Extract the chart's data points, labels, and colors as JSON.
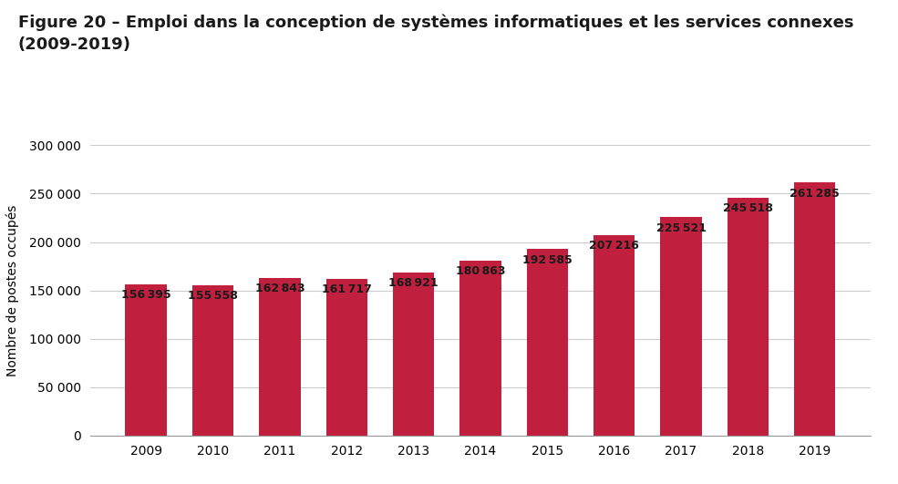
{
  "title_line1": "Figure 20 – Emploi dans la conception de systèmes informatiques et les services connexes",
  "title_line2": "(2009-2019)",
  "ylabel": "Nombre de postes occupés",
  "years": [
    "2009",
    "2010",
    "2011",
    "2012",
    "2013",
    "2014",
    "2015",
    "2016",
    "2017",
    "2018",
    "2019"
  ],
  "values": [
    156395,
    155558,
    162843,
    161717,
    168921,
    180863,
    192585,
    207216,
    225521,
    245518,
    261285
  ],
  "bar_color": "#c0203e",
  "label_color": "#1a1a1a",
  "background_color": "#ffffff",
  "ylim": [
    0,
    300000
  ],
  "yticks": [
    0,
    50000,
    100000,
    150000,
    200000,
    250000,
    300000
  ],
  "ytick_labels": [
    "0",
    "50 000",
    "100 000",
    "150 000",
    "200 000",
    "250 000",
    "300 000"
  ],
  "bar_label_fontsize": 9,
  "axis_fontsize": 10,
  "title_fontsize": 13,
  "grid_color": "#cccccc"
}
